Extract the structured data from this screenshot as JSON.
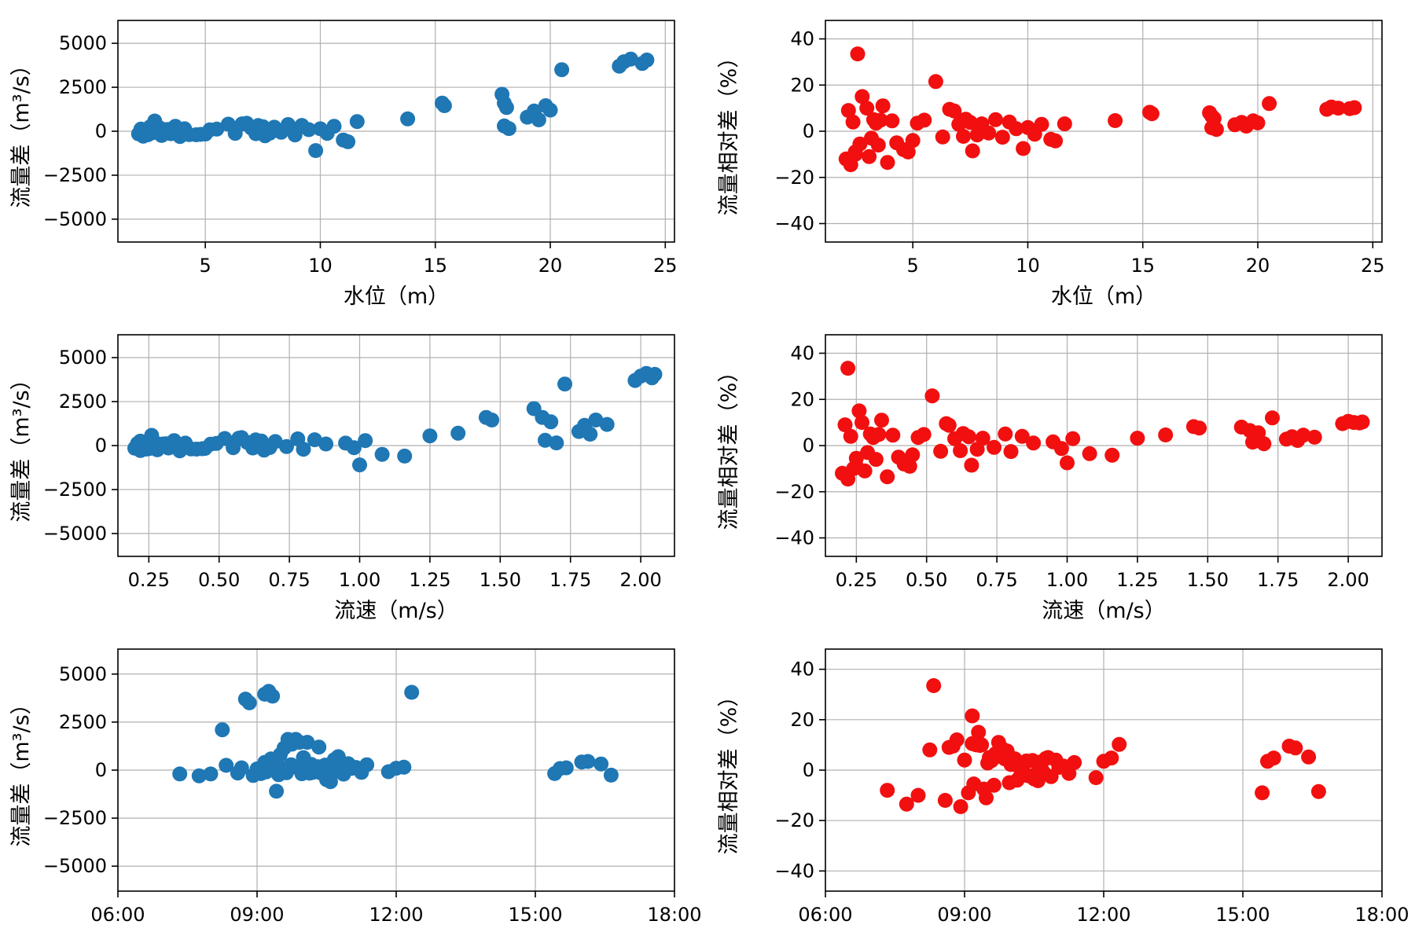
{
  "chart_data": {
    "type": "scatter",
    "description_title": "",
    "colors": {
      "blue": "#1f77b4",
      "red": "#f20f0f",
      "grid": "#b0b0b0",
      "spine": "#000000"
    },
    "observations": [
      {
        "t": "07:20",
        "level": 4.6,
        "vel": 0.42,
        "dq": -200,
        "rel": -8.0
      },
      {
        "t": "07:45",
        "level": 3.9,
        "vel": 0.36,
        "dq": -300,
        "rel": -13.5
      },
      {
        "t": "08:00",
        "level": 2.5,
        "vel": 0.24,
        "dq": -200,
        "rel": -10.0
      },
      {
        "t": "08:15",
        "level": 17.9,
        "vel": 1.62,
        "dq": 2100,
        "rel": 8.0
      },
      {
        "t": "08:20",
        "level": 2.6,
        "vel": 0.22,
        "dq": 250,
        "rel": 33.5
      },
      {
        "t": "08:35",
        "level": 2.1,
        "vel": 0.2,
        "dq": -150,
        "rel": -12.0
      },
      {
        "t": "08:40",
        "level": 2.2,
        "vel": 0.21,
        "dq": 120,
        "rel": 9.0
      },
      {
        "t": "08:45",
        "level": 23.0,
        "vel": 1.98,
        "dq": 3700,
        "rel": 9.5
      },
      {
        "t": "08:50",
        "level": 20.5,
        "vel": 1.73,
        "dq": 3500,
        "rel": 12.0
      },
      {
        "t": "08:55",
        "level": 2.3,
        "vel": 0.22,
        "dq": -280,
        "rel": -14.5
      },
      {
        "t": "09:00",
        "level": 2.4,
        "vel": 0.23,
        "dq": 60,
        "rel": 4.0
      },
      {
        "t": "09:05",
        "level": 2.5,
        "vel": 0.25,
        "dq": -180,
        "rel": -9.0
      },
      {
        "t": "09:10",
        "level": 6.0,
        "vel": 0.52,
        "dq": 400,
        "rel": 21.5
      },
      {
        "t": "09:10",
        "level": 23.2,
        "vel": 2.0,
        "dq": 3950,
        "rel": 10.5
      },
      {
        "t": "09:12",
        "level": 2.7,
        "vel": 0.25,
        "dq": -90,
        "rel": -5.5
      },
      {
        "t": "09:15",
        "level": 23.5,
        "vel": 2.02,
        "dq": 4100,
        "rel": 10.0
      },
      {
        "t": "09:18",
        "level": 2.8,
        "vel": 0.26,
        "dq": 580,
        "rel": 15.0
      },
      {
        "t": "09:20",
        "level": 24.0,
        "vel": 2.04,
        "dq": 3850,
        "rel": 9.8
      },
      {
        "t": "09:22",
        "level": 3.0,
        "vel": 0.27,
        "dq": 200,
        "rel": 10.0
      },
      {
        "t": "09:25",
        "level": 9.8,
        "vel": 1.0,
        "dq": -1100,
        "rel": -7.5
      },
      {
        "t": "09:28",
        "level": 3.1,
        "vel": 0.28,
        "dq": -240,
        "rel": -11.0
      },
      {
        "t": "09:30",
        "level": 19.0,
        "vel": 1.78,
        "dq": 800,
        "rel": 2.8
      },
      {
        "t": "09:32",
        "level": 3.3,
        "vel": 0.3,
        "dq": 90,
        "rel": 5.0
      },
      {
        "t": "09:35",
        "level": 19.3,
        "vel": 1.8,
        "dq": 1150,
        "rel": 3.8
      },
      {
        "t": "09:38",
        "level": 3.5,
        "vel": 0.32,
        "dq": -140,
        "rel": -6.0
      },
      {
        "t": "09:40",
        "level": 18.0,
        "vel": 1.65,
        "dq": 1600,
        "rel": 6.5
      },
      {
        "t": "09:44",
        "level": 3.7,
        "vel": 0.34,
        "dq": 280,
        "rel": 11.0
      },
      {
        "t": "09:45",
        "level": 18.1,
        "vel": 1.68,
        "dq": 1350,
        "rel": 5.5
      },
      {
        "t": "09:50",
        "level": 15.3,
        "vel": 1.45,
        "dq": 1600,
        "rel": 8.2
      },
      {
        "t": "09:52",
        "level": 4.1,
        "vel": 0.38,
        "dq": 140,
        "rel": 4.5
      },
      {
        "t": "09:55",
        "level": 15.4,
        "vel": 1.47,
        "dq": 1450,
        "rel": 7.6
      },
      {
        "t": "09:58",
        "level": 4.3,
        "vel": 0.4,
        "dq": -190,
        "rel": -5.0
      },
      {
        "t": "10:00",
        "level": 19.5,
        "vel": 1.82,
        "dq": 650,
        "rel": 2.2
      },
      {
        "t": "10:05",
        "level": 19.8,
        "vel": 1.84,
        "dq": 1450,
        "rel": 4.5
      },
      {
        "t": "10:08",
        "level": 5.0,
        "vel": 0.45,
        "dq": -160,
        "rel": -4.0
      },
      {
        "t": "10:10",
        "level": 18.0,
        "vel": 1.66,
        "dq": 300,
        "rel": 1.5
      },
      {
        "t": "10:12",
        "level": 6.3,
        "vel": 0.55,
        "dq": -120,
        "rel": -2.5
      },
      {
        "t": "10:15",
        "level": 18.2,
        "vel": 1.7,
        "dq": 150,
        "rel": 0.8
      },
      {
        "t": "10:18",
        "level": 7.0,
        "vel": 0.6,
        "dq": 180,
        "rel": 3.0
      },
      {
        "t": "10:20",
        "level": 20.0,
        "vel": 1.88,
        "dq": 1200,
        "rel": 3.6
      },
      {
        "t": "10:22",
        "level": 7.2,
        "vel": 0.62,
        "dq": -140,
        "rel": -2.2
      },
      {
        "t": "10:28",
        "level": 7.5,
        "vel": 0.65,
        "dq": 260,
        "rel": 3.8
      },
      {
        "t": "10:30",
        "level": 11.0,
        "vel": 1.08,
        "dq": -500,
        "rel": -3.5
      },
      {
        "t": "10:32",
        "level": 7.8,
        "vel": 0.68,
        "dq": -110,
        "rel": -1.6
      },
      {
        "t": "10:35",
        "level": 11.2,
        "vel": 1.16,
        "dq": -600,
        "rel": -4.2
      },
      {
        "t": "10:38",
        "level": 8.0,
        "vel": 0.7,
        "dq": 230,
        "rel": 3.2
      },
      {
        "t": "10:40",
        "level": 11.6,
        "vel": 1.25,
        "dq": 550,
        "rel": 3.2
      },
      {
        "t": "10:42",
        "level": 8.3,
        "vel": 0.74,
        "dq": -60,
        "rel": -0.8
      },
      {
        "t": "10:45",
        "level": 13.8,
        "vel": 1.35,
        "dq": 700,
        "rel": 4.6
      },
      {
        "t": "10:48",
        "level": 8.6,
        "vel": 0.78,
        "dq": 380,
        "rel": 5.0
      },
      {
        "t": "10:52",
        "level": 8.9,
        "vel": 0.8,
        "dq": -210,
        "rel": -2.6
      },
      {
        "t": "10:58",
        "level": 9.2,
        "vel": 0.84,
        "dq": 330,
        "rel": 4.0
      },
      {
        "t": "11:02",
        "level": 9.5,
        "vel": 0.88,
        "dq": 90,
        "rel": 1.1
      },
      {
        "t": "11:08",
        "level": 10.0,
        "vel": 0.95,
        "dq": 140,
        "rel": 1.6
      },
      {
        "t": "11:15",
        "level": 10.3,
        "vel": 0.98,
        "dq": -120,
        "rel": -1.3
      },
      {
        "t": "11:22",
        "level": 10.6,
        "vel": 1.02,
        "dq": 280,
        "rel": 3.0
      },
      {
        "t": "11:50",
        "level": 3.2,
        "vel": 0.29,
        "dq": -80,
        "rel": -3.0
      },
      {
        "t": "12:00",
        "level": 3.4,
        "vel": 0.31,
        "dq": 100,
        "rel": 3.5
      },
      {
        "t": "12:10",
        "level": 3.6,
        "vel": 0.33,
        "dq": 150,
        "rel": 4.8
      },
      {
        "t": "12:20",
        "level": 24.2,
        "vel": 2.05,
        "dq": 4050,
        "rel": 10.2
      },
      {
        "t": "15:25",
        "level": 4.8,
        "vel": 0.44,
        "dq": -180,
        "rel": -9.0
      },
      {
        "t": "15:32",
        "level": 5.2,
        "vel": 0.47,
        "dq": 80,
        "rel": 3.5
      },
      {
        "t": "15:40",
        "level": 5.5,
        "vel": 0.49,
        "dq": 120,
        "rel": 4.8
      },
      {
        "t": "16:00",
        "level": 6.6,
        "vel": 0.57,
        "dq": 420,
        "rel": 9.5
      },
      {
        "t": "16:08",
        "level": 6.8,
        "vel": 0.58,
        "dq": 450,
        "rel": 8.8
      },
      {
        "t": "16:25",
        "level": 7.3,
        "vel": 0.63,
        "dq": 320,
        "rel": 5.2
      },
      {
        "t": "16:38",
        "level": 7.6,
        "vel": 0.66,
        "dq": -260,
        "rel": -8.5
      }
    ],
    "charts": [
      {
        "name": "dq-vs-level",
        "x": "level",
        "y": "dq",
        "color": "#1f77b4",
        "xlabel": "水位（m）",
        "ylabel": "流量差（m³/s）",
        "xlim": [
          1.2,
          25.4
        ],
        "ylim": [
          -6300,
          6300
        ],
        "xticks": {
          "values": [
            5,
            10,
            15,
            20,
            25
          ],
          "labels": [
            "5",
            "10",
            "15",
            "20",
            "25"
          ]
        },
        "yticks": {
          "values": [
            -5000,
            -2500,
            0,
            2500,
            5000
          ],
          "labels": [
            "−5000",
            "−2500",
            "0",
            "2500",
            "5000"
          ]
        },
        "margins": {
          "l": 150,
          "r": 42,
          "t": 26,
          "b": 92
        }
      },
      {
        "name": "rel-vs-level",
        "x": "level",
        "y": "rel",
        "color": "#f20f0f",
        "xlabel": "水位（m）",
        "ylabel": "流量相对差（%）",
        "xlim": [
          1.2,
          25.4
        ],
        "ylim": [
          -48,
          48
        ],
        "xticks": {
          "values": [
            5,
            10,
            15,
            20,
            25
          ],
          "labels": [
            "5",
            "10",
            "15",
            "20",
            "25"
          ]
        },
        "yticks": {
          "values": [
            -40,
            -20,
            0,
            20,
            40
          ],
          "labels": [
            "−40",
            "−20",
            "0",
            "20",
            "40"
          ]
        },
        "margins": {
          "l": 150,
          "r": 42,
          "t": 26,
          "b": 92
        }
      },
      {
        "name": "dq-vs-velocity",
        "x": "vel",
        "y": "dq",
        "color": "#1f77b4",
        "xlabel": "流速（m/s）",
        "ylabel": "流量差（m³/s）",
        "xlim": [
          0.14,
          2.12
        ],
        "ylim": [
          -6300,
          6300
        ],
        "xticks": {
          "values": [
            0.25,
            0.5,
            0.75,
            1.0,
            1.25,
            1.5,
            1.75,
            2.0
          ],
          "labels": [
            "0.25",
            "0.50",
            "0.75",
            "1.00",
            "1.25",
            "1.50",
            "1.75",
            "2.00"
          ]
        },
        "yticks": {
          "values": [
            -5000,
            -2500,
            0,
            2500,
            5000
          ],
          "labels": [
            "−5000",
            "−2500",
            "0",
            "2500",
            "5000"
          ]
        },
        "margins": {
          "l": 150,
          "r": 42,
          "t": 26,
          "b": 92
        }
      },
      {
        "name": "rel-vs-velocity",
        "x": "vel",
        "y": "rel",
        "color": "#f20f0f",
        "xlabel": "流速（m/s）",
        "ylabel": "流量相对差（%）",
        "xlim": [
          0.14,
          2.12
        ],
        "ylim": [
          -48,
          48
        ],
        "xticks": {
          "values": [
            0.25,
            0.5,
            0.75,
            1.0,
            1.25,
            1.5,
            1.75,
            2.0
          ],
          "labels": [
            "0.25",
            "0.50",
            "0.75",
            "1.00",
            "1.25",
            "1.50",
            "1.75",
            "2.00"
          ]
        },
        "yticks": {
          "values": [
            -40,
            -20,
            0,
            20,
            40
          ],
          "labels": [
            "−40",
            "−20",
            "0",
            "20",
            "40"
          ]
        },
        "margins": {
          "l": 150,
          "r": 42,
          "t": 26,
          "b": 92
        }
      },
      {
        "name": "dq-vs-time",
        "x": "t",
        "y": "dq",
        "color": "#1f77b4",
        "xlabel": "",
        "ylabel": "流量差（m³/s）",
        "xlim": [
          360,
          1080
        ],
        "ylim": [
          -6300,
          6300
        ],
        "xticks": {
          "values": [
            360,
            540,
            720,
            900,
            1080
          ],
          "labels": [
            "06:00",
            "09:00",
            "12:00",
            "15:00",
            "18:00"
          ]
        },
        "yticks": {
          "values": [
            -5000,
            -2500,
            0,
            2500,
            5000
          ],
          "labels": [
            "−5000",
            "−2500",
            "0",
            "2500",
            "5000"
          ]
        },
        "margins": {
          "l": 150,
          "r": 42,
          "t": 26,
          "b": 66
        }
      },
      {
        "name": "rel-vs-time",
        "x": "t",
        "y": "rel",
        "color": "#f20f0f",
        "xlabel": "",
        "ylabel": "流量相对差（%）",
        "xlim": [
          360,
          1080
        ],
        "ylim": [
          -48,
          48
        ],
        "xticks": {
          "values": [
            360,
            540,
            720,
            900,
            1080
          ],
          "labels": [
            "06:00",
            "09:00",
            "12:00",
            "15:00",
            "18:00"
          ]
        },
        "yticks": {
          "values": [
            -40,
            -20,
            0,
            20,
            40
          ],
          "labels": [
            "−40",
            "−20",
            "0",
            "20",
            "40"
          ]
        },
        "margins": {
          "l": 150,
          "r": 42,
          "t": 26,
          "b": 66
        }
      }
    ]
  }
}
